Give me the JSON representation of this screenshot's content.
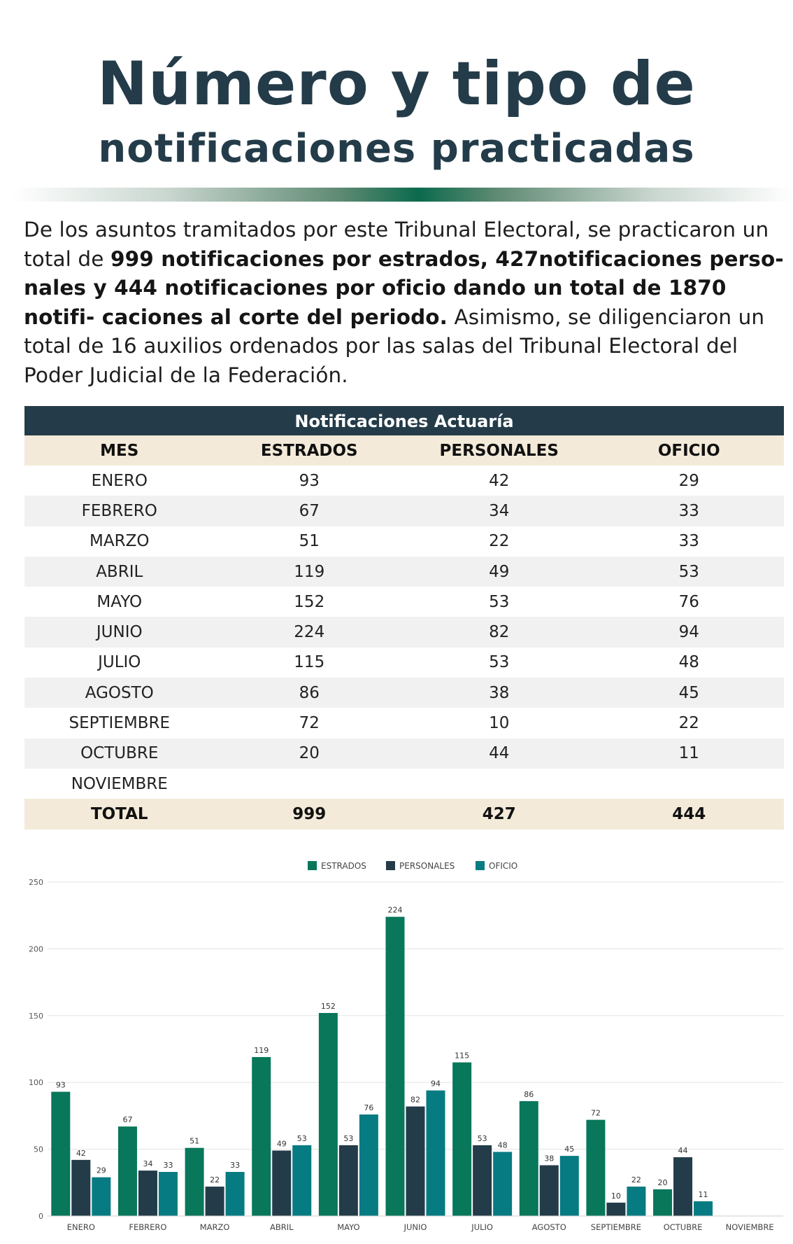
{
  "title": {
    "line1": "Número y tipo de",
    "line2": "notificaciones practicadas"
  },
  "intro": {
    "part1": "De los asuntos tramitados por este Tribunal Electoral, se practicaron un total de ",
    "bold": "999 notificaciones por estrados, 427notificaciones perso- nales y 444 notificaciones por oficio dando un total de 1870 notifi- caciones al corte del periodo.",
    "part2": " Asimismo, se diligenciaron un total de 16 auxilios ordenados por las salas del Tribunal Electoral del Poder Judicial de la Federación."
  },
  "table": {
    "title": "Notificaciones Actuaría",
    "headers": [
      "MES",
      "ESTRADOS",
      "PERSONALES",
      "OFICIO"
    ],
    "rows": [
      [
        "ENERO",
        "93",
        "42",
        "29"
      ],
      [
        "FEBRERO",
        "67",
        "34",
        "33"
      ],
      [
        "MARZO",
        "51",
        "22",
        "33"
      ],
      [
        "ABRIL",
        "119",
        "49",
        "53"
      ],
      [
        "MAYO",
        "152",
        "53",
        "76"
      ],
      [
        "JUNIO",
        "224",
        "82",
        "94"
      ],
      [
        "JULIO",
        "115",
        "53",
        "48"
      ],
      [
        "AGOSTO",
        "86",
        "38",
        "45"
      ],
      [
        "SEPTIEMBRE",
        "72",
        "10",
        "22"
      ],
      [
        "OCTUBRE",
        "20",
        "44",
        "11"
      ],
      [
        "NOVIEMBRE",
        "",
        "",
        ""
      ]
    ],
    "total": [
      "TOTAL",
      "999",
      "427",
      "444"
    ]
  },
  "chart_data": {
    "type": "bar",
    "title": "",
    "xlabel": "",
    "ylabel": "",
    "categories": [
      "ENERO",
      "FEBRERO",
      "MARZO",
      "ABRIL",
      "MAYO",
      "JUNIO",
      "JULIO",
      "AGOSTO",
      "SEPTIEMBRE",
      "OCTUBRE",
      "NOVIEMBRE"
    ],
    "series": [
      {
        "name": "ESTRADOS",
        "color": "#08775a",
        "values": [
          93,
          67,
          51,
          119,
          152,
          224,
          115,
          86,
          72,
          20,
          null
        ]
      },
      {
        "name": "PERSONALES",
        "color": "#243c49",
        "values": [
          42,
          34,
          22,
          49,
          53,
          82,
          53,
          38,
          10,
          44,
          null
        ]
      },
      {
        "name": "OFICIO",
        "color": "#077b82",
        "values": [
          29,
          33,
          33,
          53,
          76,
          94,
          48,
          45,
          22,
          11,
          null
        ]
      }
    ],
    "ylim": [
      0,
      250
    ],
    "yticks": [
      0,
      50,
      100,
      150,
      200,
      250
    ],
    "grid": true,
    "legend": "top-center",
    "data_labels": true
  }
}
